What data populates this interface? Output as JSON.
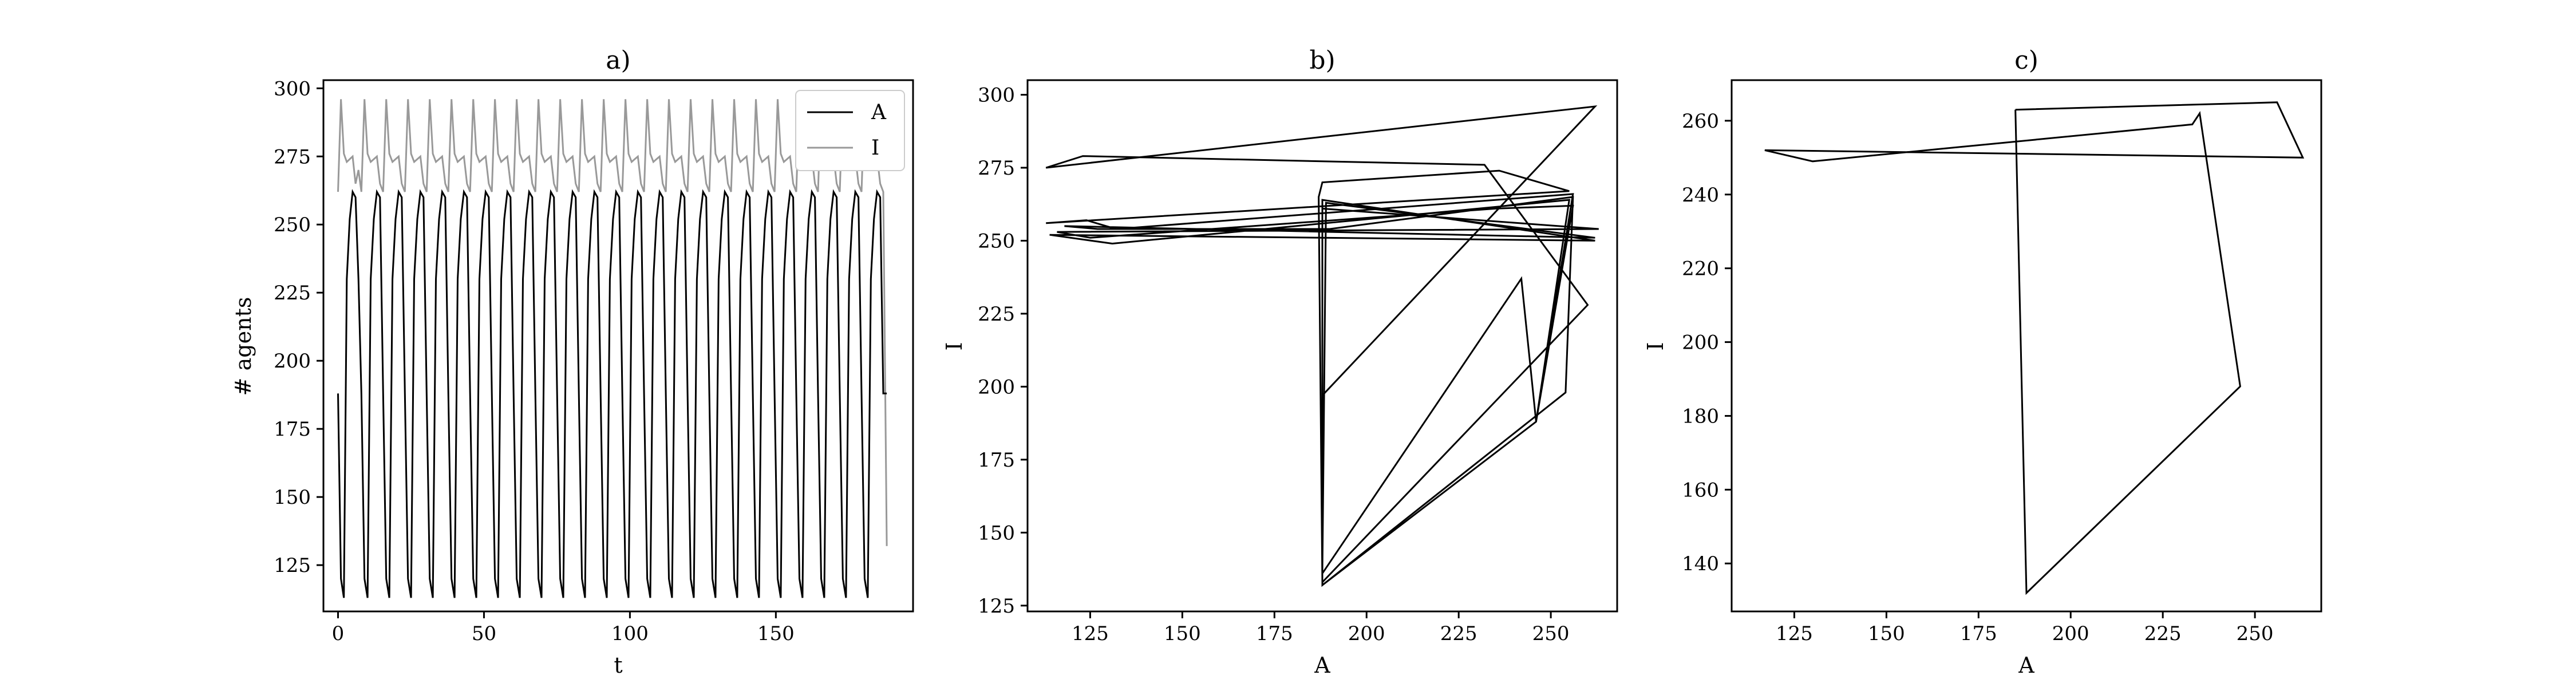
{
  "chart_data": [
    {
      "type": "line",
      "title": "a)",
      "xlabel": "t",
      "ylabel": "# agents",
      "xlim": [
        -5,
        197
      ],
      "ylim": [
        108,
        303
      ],
      "xticks": [
        0,
        50,
        100,
        150
      ],
      "yticks": [
        125,
        150,
        175,
        200,
        225,
        250,
        275,
        300
      ],
      "legend": "top-right",
      "period": 7.45,
      "series": [
        {
          "name": "A",
          "color": "#000000",
          "x": [
            0,
            1,
            2,
            3,
            4,
            5,
            6,
            7,
            8,
            9,
            10,
            11,
            12,
            13,
            14,
            15,
            16,
            17,
            18,
            19,
            20,
            188
          ],
          "values": [
            188,
            120,
            113,
            230,
            252,
            262,
            260,
            230,
            235,
            240,
            190,
            118,
            230,
            250,
            262,
            250,
            236,
            245,
            188,
            120,
            255,
            188
          ]
        },
        {
          "name": "I",
          "color": "#999999",
          "x": [
            0,
            1,
            2,
            3,
            4,
            5,
            6,
            7,
            8,
            9,
            10,
            11,
            12,
            13,
            14,
            15,
            16,
            17,
            18,
            19,
            20,
            188
          ],
          "values": [
            262,
            296,
            276,
            273,
            274,
            275,
            265,
            270,
            250,
            200,
            185,
            150,
            258,
            263,
            255,
            250,
            252,
            245,
            132,
            263,
            252,
            132
          ]
        }
      ]
    },
    {
      "type": "line",
      "title": "b)",
      "xlabel": "A",
      "ylabel": "I",
      "xlim": [
        108,
        268
      ],
      "ylim": [
        123,
        305
      ],
      "xticks": [
        125,
        150,
        175,
        200,
        225,
        250
      ],
      "yticks": [
        125,
        150,
        175,
        200,
        225,
        250,
        275,
        300
      ],
      "x": [
        188,
        262,
        113,
        123,
        232,
        260,
        188,
        187,
        188,
        236,
        255,
        113,
        124,
        132,
        256,
        246,
        242,
        188,
        189,
        262,
        118,
        127,
        190,
        256,
        254,
        188,
        188,
        263,
        116,
        125,
        235,
        256,
        246,
        188,
        188,
        262,
        114,
        131,
        255,
        246,
        188
      ],
      "y": [
        197,
        296,
        275,
        279,
        276,
        228,
        133,
        265,
        270,
        274,
        267,
        256,
        257,
        254,
        266,
        188,
        237,
        136,
        263,
        251,
        255,
        254,
        254,
        265,
        198,
        132,
        261,
        254,
        253,
        251,
        261,
        262,
        188,
        132,
        264,
        250,
        252,
        249,
        264,
        188,
        132
      ]
    },
    {
      "type": "line",
      "title": "c)",
      "xlabel": "A",
      "ylabel": "I",
      "xlim": [
        108,
        268
      ],
      "ylim": [
        127,
        271
      ],
      "xticks": [
        125,
        150,
        175,
        200,
        225,
        250
      ],
      "yticks": [
        140,
        160,
        180,
        200,
        220,
        240,
        260
      ],
      "x": [
        185,
        256,
        263,
        117,
        130,
        233,
        235,
        246,
        188,
        185
      ],
      "y": [
        263,
        265,
        250,
        252,
        249,
        259,
        262,
        188,
        132,
        263
      ]
    }
  ]
}
